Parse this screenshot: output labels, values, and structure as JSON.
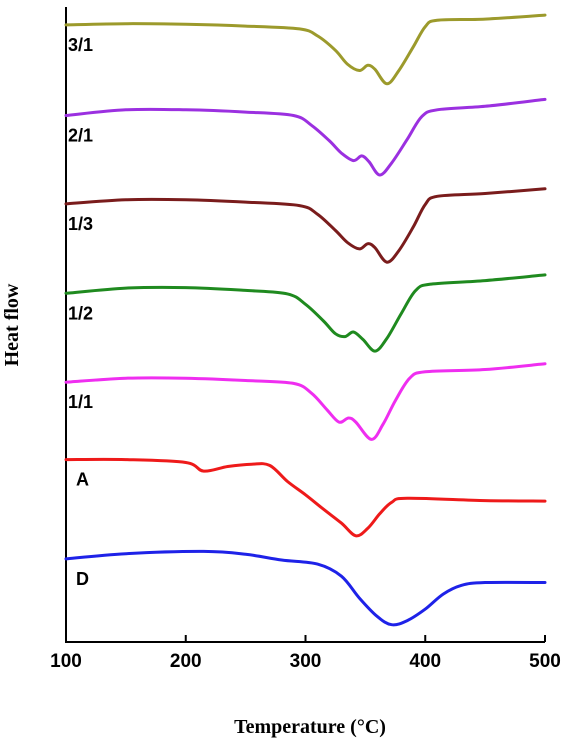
{
  "chart_data": {
    "type": "line",
    "xlabel": "Temperature (°C)",
    "ylabel": "Heat flow",
    "xlim": [
      100,
      500
    ],
    "xticks": [
      100,
      200,
      300,
      400,
      500
    ],
    "grid": false,
    "series": [
      {
        "name": "3/1",
        "color": "#9c9a2c",
        "points": [
          [
            100,
            0.969
          ],
          [
            150,
            0.971
          ],
          [
            200,
            0.97
          ],
          [
            250,
            0.967
          ],
          [
            295,
            0.962
          ],
          [
            310,
            0.95
          ],
          [
            325,
            0.925
          ],
          [
            335,
            0.901
          ],
          [
            345,
            0.89
          ],
          [
            352,
            0.899
          ],
          [
            358,
            0.892
          ],
          [
            368,
            0.867
          ],
          [
            378,
            0.89
          ],
          [
            390,
            0.931
          ],
          [
            400,
            0.966
          ],
          [
            410,
            0.977
          ],
          [
            450,
            0.979
          ],
          [
            500,
            0.986
          ]
        ]
      },
      {
        "name": "2/1",
        "color": "#9b30e0",
        "points": [
          [
            100,
            0.812
          ],
          [
            150,
            0.822
          ],
          [
            200,
            0.822
          ],
          [
            250,
            0.818
          ],
          [
            290,
            0.812
          ],
          [
            305,
            0.795
          ],
          [
            320,
            0.768
          ],
          [
            330,
            0.747
          ],
          [
            340,
            0.734
          ],
          [
            347,
            0.742
          ],
          [
            353,
            0.732
          ],
          [
            362,
            0.709
          ],
          [
            372,
            0.73
          ],
          [
            385,
            0.771
          ],
          [
            397,
            0.81
          ],
          [
            410,
            0.822
          ],
          [
            450,
            0.828
          ],
          [
            500,
            0.84
          ]
        ]
      },
      {
        "name": "1/3",
        "color": "#7a1c1c",
        "points": [
          [
            100,
            0.659
          ],
          [
            150,
            0.666
          ],
          [
            200,
            0.666
          ],
          [
            250,
            0.662
          ],
          [
            295,
            0.656
          ],
          [
            310,
            0.641
          ],
          [
            325,
            0.613
          ],
          [
            335,
            0.592
          ],
          [
            345,
            0.581
          ],
          [
            352,
            0.59
          ],
          [
            358,
            0.583
          ],
          [
            368,
            0.558
          ],
          [
            378,
            0.578
          ],
          [
            390,
            0.619
          ],
          [
            400,
            0.658
          ],
          [
            410,
            0.672
          ],
          [
            450,
            0.677
          ],
          [
            500,
            0.685
          ]
        ]
      },
      {
        "name": "1/2",
        "color": "#1f8a1f",
        "points": [
          [
            100,
            0.504
          ],
          [
            150,
            0.513
          ],
          [
            200,
            0.514
          ],
          [
            250,
            0.509
          ],
          [
            285,
            0.503
          ],
          [
            300,
            0.485
          ],
          [
            315,
            0.456
          ],
          [
            325,
            0.434
          ],
          [
            333,
            0.429
          ],
          [
            340,
            0.437
          ],
          [
            348,
            0.424
          ],
          [
            358,
            0.404
          ],
          [
            368,
            0.426
          ],
          [
            380,
            0.469
          ],
          [
            392,
            0.509
          ],
          [
            405,
            0.52
          ],
          [
            450,
            0.526
          ],
          [
            500,
            0.536
          ]
        ]
      },
      {
        "name": "1/1",
        "color": "#ef2ef0",
        "points": [
          [
            100,
            0.35
          ],
          [
            150,
            0.357
          ],
          [
            200,
            0.357
          ],
          [
            250,
            0.353
          ],
          [
            290,
            0.348
          ],
          [
            305,
            0.331
          ],
          [
            318,
            0.302
          ],
          [
            328,
            0.281
          ],
          [
            336,
            0.288
          ],
          [
            342,
            0.281
          ],
          [
            355,
            0.251
          ],
          [
            365,
            0.278
          ],
          [
            375,
            0.318
          ],
          [
            387,
            0.357
          ],
          [
            400,
            0.368
          ],
          [
            450,
            0.372
          ],
          [
            500,
            0.382
          ]
        ]
      },
      {
        "name": "A",
        "color": "#ee1a1a",
        "points": [
          [
            100,
            0.216
          ],
          [
            150,
            0.216
          ],
          [
            200,
            0.211
          ],
          [
            215,
            0.196
          ],
          [
            235,
            0.204
          ],
          [
            255,
            0.208
          ],
          [
            270,
            0.206
          ],
          [
            285,
            0.178
          ],
          [
            300,
            0.155
          ],
          [
            315,
            0.13
          ],
          [
            330,
            0.106
          ],
          [
            342,
            0.084
          ],
          [
            352,
            0.097
          ],
          [
            362,
            0.122
          ],
          [
            372,
            0.142
          ],
          [
            385,
            0.149
          ],
          [
            450,
            0.145
          ],
          [
            500,
            0.144
          ]
        ]
      },
      {
        "name": "D",
        "color": "#1e22e8",
        "points": [
          [
            100,
            0.044
          ],
          [
            150,
            0.053
          ],
          [
            215,
            0.057
          ],
          [
            250,
            0.052
          ],
          [
            280,
            0.042
          ],
          [
            310,
            0.035
          ],
          [
            330,
            0.014
          ],
          [
            345,
            -0.024
          ],
          [
            360,
            -0.056
          ],
          [
            372,
            -0.07
          ],
          [
            385,
            -0.063
          ],
          [
            400,
            -0.043
          ],
          [
            415,
            -0.017
          ],
          [
            430,
            -0.002
          ],
          [
            450,
            0.003
          ],
          [
            500,
            0.003
          ]
        ]
      }
    ]
  }
}
